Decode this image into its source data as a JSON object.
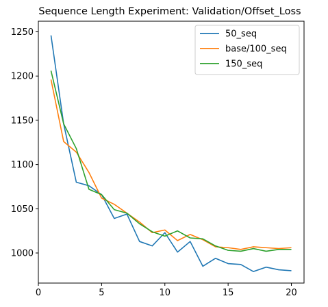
{
  "chart_data": {
    "type": "line",
    "title": "Sequence Length Experiment: Validation/Offset_Loss",
    "xlabel": "",
    "ylabel": "",
    "xlim": [
      0,
      21
    ],
    "ylim": [
      966,
      1262
    ],
    "xticks": [
      0,
      5,
      10,
      15,
      20
    ],
    "yticks": [
      1000,
      1050,
      1100,
      1150,
      1200,
      1250
    ],
    "x": [
      1,
      2,
      3,
      4,
      5,
      6,
      7,
      8,
      9,
      10,
      11,
      12,
      13,
      14,
      15,
      16,
      17,
      18,
      19,
      20
    ],
    "series": [
      {
        "name": "50_seq",
        "color": "#1f77b4",
        "values": [
          1246,
          1146,
          1080,
          1076,
          1066,
          1039,
          1044,
          1013,
          1008,
          1023,
          1001,
          1013,
          985,
          994,
          988,
          987,
          979,
          984,
          981,
          980
        ]
      },
      {
        "name": "base/100_seq",
        "color": "#ff7f0e",
        "values": [
          1196,
          1126,
          1114,
          1091,
          1062,
          1055,
          1045,
          1035,
          1023,
          1026,
          1014,
          1021,
          1015,
          1007,
          1006,
          1004,
          1007,
          1006,
          1005,
          1006
        ]
      },
      {
        "name": "150_seq",
        "color": "#2ca02c",
        "values": [
          1206,
          1146,
          1118,
          1072,
          1066,
          1049,
          1045,
          1033,
          1024,
          1019,
          1025,
          1017,
          1016,
          1008,
          1003,
          1002,
          1005,
          1002,
          1004,
          1004
        ]
      }
    ],
    "grid": false,
    "legend_position": "top-right"
  }
}
